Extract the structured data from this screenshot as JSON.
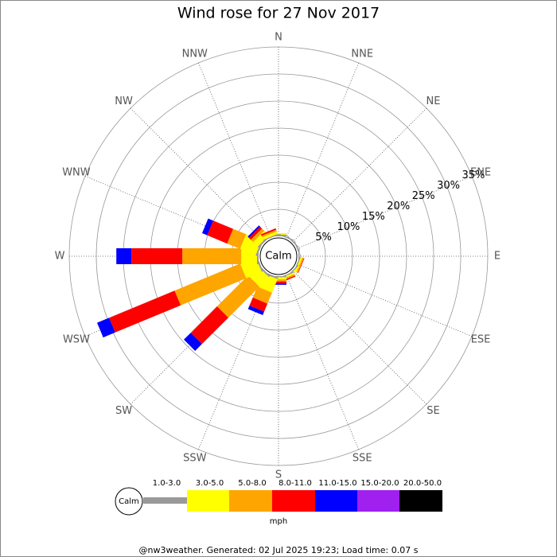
{
  "chart_data": {
    "type": "windrose",
    "title": "Wind rose for 27 Nov 2017",
    "categories": [
      "N",
      "NNE",
      "NE",
      "ENE",
      "E",
      "ESE",
      "SE",
      "SSE",
      "S",
      "SSW",
      "SW",
      "WSW",
      "W",
      "WNW",
      "NW",
      "NNW"
    ],
    "series": [
      {
        "name": "1.0-3.0",
        "color": "#999999",
        "values": [
          0.3,
          0.2,
          0.2,
          0.2,
          0.2,
          0.2,
          0.2,
          0.2,
          0.2,
          0.3,
          0.3,
          0.3,
          0.3,
          0.3,
          0.3,
          0.2
        ]
      },
      {
        "name": "3.0-5.0",
        "color": "#ffff00",
        "values": [
          0.3,
          0,
          0,
          0,
          0.1,
          0.3,
          0.2,
          0.3,
          0.4,
          2.7,
          2.5,
          3.1,
          2.9,
          3.1,
          1.2,
          0.5
        ]
      },
      {
        "name": "5.0-8.0",
        "color": "#ffa500",
        "values": [
          0,
          0,
          0,
          0,
          0,
          0.3,
          0,
          0.3,
          0.4,
          2.2,
          8.1,
          13.1,
          10.9,
          2.6,
          0.6,
          0.3
        ]
      },
      {
        "name": "8.0-11.0",
        "color": "#ff0000",
        "values": [
          0,
          0,
          0,
          0,
          0,
          0.1,
          0,
          0.2,
          0.4,
          1.6,
          6.9,
          13.1,
          9.4,
          4.0,
          0.5,
          0.3
        ]
      },
      {
        "name": "11.0-15.0",
        "color": "#0000ff",
        "values": [
          0,
          0,
          0,
          0,
          0,
          0,
          0,
          0,
          0.2,
          0.7,
          1.8,
          2.4,
          2.8,
          1.0,
          0.3,
          0
        ]
      },
      {
        "name": "15.0-20.0",
        "color": "#a020f0",
        "values": [
          0,
          0,
          0,
          0,
          0,
          0,
          0,
          0,
          0,
          0,
          0,
          0,
          0,
          0,
          0,
          0
        ]
      },
      {
        "name": "20.0-50.0",
        "color": "#000000",
        "values": [
          0,
          0,
          0,
          0,
          0,
          0,
          0,
          0,
          0,
          0,
          0,
          0,
          0,
          0,
          0,
          0
        ]
      }
    ],
    "rlim": [
      0,
      35
    ],
    "rticks": [
      {
        "value": 5,
        "label": "5%"
      },
      {
        "value": 10,
        "label": "10%"
      },
      {
        "value": 15,
        "label": "15%"
      },
      {
        "value": 20,
        "label": "20%"
      },
      {
        "value": 25,
        "label": "25%"
      },
      {
        "value": 30,
        "label": "30%"
      },
      {
        "value": 35,
        "label": "35%"
      }
    ],
    "calm_label": "Calm",
    "unit": "mph",
    "footer": "@nw3weather. Generated: 02 Jul 2025 19:23; Load time: 0.07 s"
  }
}
